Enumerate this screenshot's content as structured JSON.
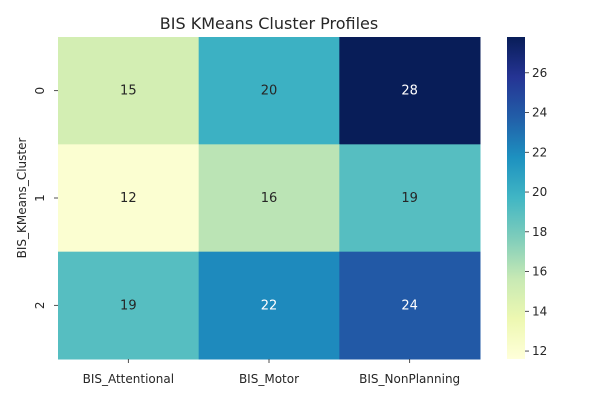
{
  "chart_data": {
    "type": "heatmap",
    "title": "BIS KMeans Cluster Profiles",
    "xlabel": "",
    "ylabel": "BIS_KMeans_Cluster",
    "columns": [
      "BIS_Attentional",
      "BIS_Motor",
      "BIS_NonPlanning"
    ],
    "rows": [
      "0",
      "1",
      "2"
    ],
    "values": [
      [
        15,
        20,
        28
      ],
      [
        12,
        16,
        19
      ],
      [
        19,
        22,
        24
      ]
    ],
    "annotations": [
      [
        "15",
        "20",
        "28"
      ],
      [
        "12",
        "16",
        "19"
      ],
      [
        "19",
        "22",
        "24"
      ]
    ],
    "colormap": "YlGnBu",
    "color_range": [
      11.6,
      27.8
    ],
    "colorbar_ticks": [
      12,
      14,
      16,
      18,
      20,
      22,
      24,
      26
    ],
    "grid": false
  }
}
